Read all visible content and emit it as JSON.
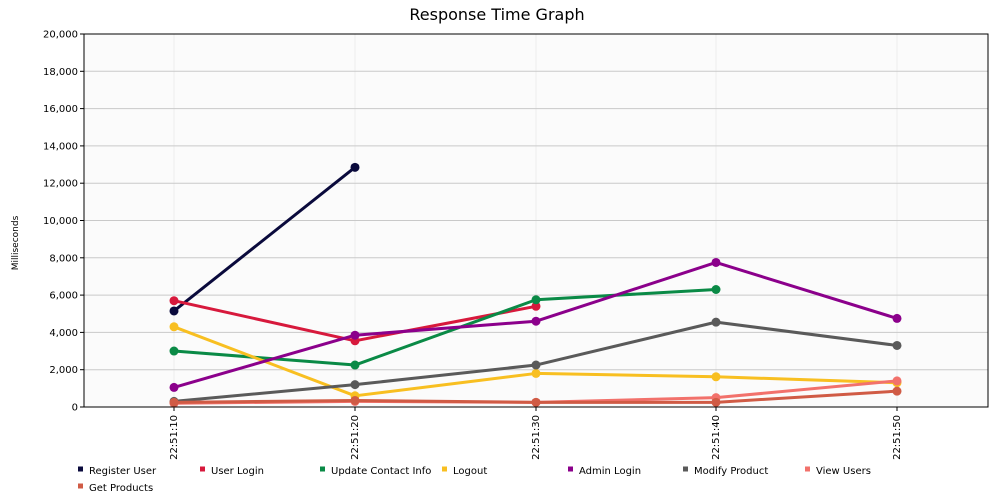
{
  "chart_data": {
    "type": "line",
    "title": "Response Time Graph",
    "xlabel": "",
    "ylabel": "Milliseconds",
    "x": [
      "22:51:10",
      "22:51:20",
      "22:51:30",
      "22:51:40",
      "22:51:50"
    ],
    "ylim": [
      0,
      20000
    ],
    "yticks": [
      0,
      2000,
      4000,
      6000,
      8000,
      10000,
      12000,
      14000,
      16000,
      18000,
      20000
    ],
    "ytick_labels": [
      "0",
      "2,000",
      "4,000",
      "6,000",
      "8,000",
      "10,000",
      "12,000",
      "14,000",
      "16,000",
      "18,000",
      "20,000"
    ],
    "grid": true,
    "legend_position": "bottom",
    "series": [
      {
        "name": "Register User",
        "color": "#0a0a3c",
        "values": [
          5150,
          12850,
          null,
          null,
          null
        ]
      },
      {
        "name": "User Login",
        "color": "#d7193c",
        "values": [
          5700,
          3550,
          5400,
          null,
          null
        ]
      },
      {
        "name": "Update Contact Info",
        "color": "#0a8a46",
        "values": [
          3000,
          2250,
          5750,
          6300,
          null
        ]
      },
      {
        "name": "Logout",
        "color": "#f8bf21",
        "values": [
          4300,
          600,
          1800,
          1620,
          1300
        ]
      },
      {
        "name": "Admin Login",
        "color": "#8b008b",
        "values": [
          1050,
          3850,
          4600,
          7750,
          4750
        ]
      },
      {
        "name": "Modify Product",
        "color": "#5a5a5a",
        "values": [
          300,
          1200,
          2250,
          4550,
          3300
        ]
      },
      {
        "name": "View Users",
        "color": "#f2716b",
        "values": [
          200,
          300,
          250,
          500,
          1400
        ]
      },
      {
        "name": "Get Products",
        "color": "#d05b45",
        "values": [
          250,
          350,
          250,
          250,
          850
        ]
      }
    ]
  }
}
